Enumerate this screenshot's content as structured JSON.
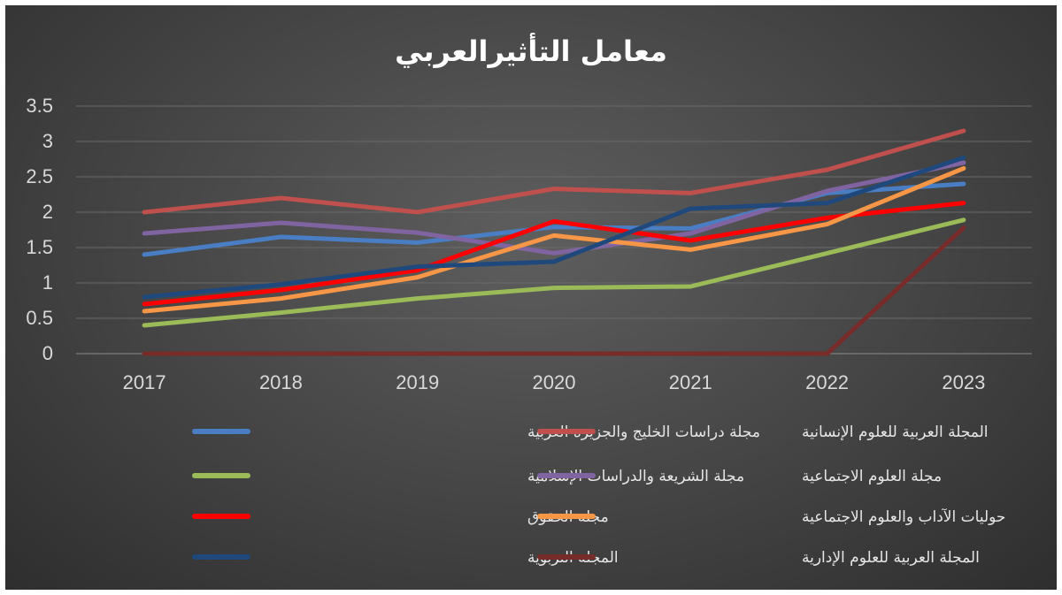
{
  "chart_data": {
    "type": "line",
    "title": "معامل التأثيرالعربي",
    "xlabel": "",
    "ylabel": "",
    "x": [
      "2017",
      "2018",
      "2019",
      "2020",
      "2021",
      "2022",
      "2023"
    ],
    "ylim": [
      0,
      3.5
    ],
    "yticks": [
      "0",
      "0.5",
      "1",
      "1.5",
      "2",
      "2.5",
      "3",
      "3.5"
    ],
    "ytick_values": [
      0,
      0.5,
      1,
      1.5,
      2,
      2.5,
      3,
      3.5
    ],
    "grid": true,
    "legend_position": "bottom",
    "series": [
      {
        "name": "مجلة دراسات الخليج والجزيرة العربية",
        "color": "#4a7ec4",
        "values": [
          1.4,
          1.65,
          1.57,
          1.79,
          1.77,
          2.27,
          2.4
        ]
      },
      {
        "name": "المجلة العربية للعلوم الإنسانية",
        "color": "#c0504d",
        "values": [
          2.0,
          2.2,
          2.0,
          2.33,
          2.27,
          2.6,
          3.15
        ]
      },
      {
        "name": "مجلة الشريعة والدراسات الإسلامية",
        "color": "#9bbb59",
        "values": [
          0.4,
          0.58,
          0.78,
          0.93,
          0.95,
          1.42,
          1.89
        ]
      },
      {
        "name": "مجلة العلوم الاجتماعية",
        "color": "#8064a2",
        "values": [
          1.7,
          1.85,
          1.71,
          1.42,
          1.7,
          2.3,
          2.7
        ]
      },
      {
        "name": "مجلة الحقوق",
        "color": "#ff0000",
        "values": [
          0.7,
          0.9,
          1.18,
          1.87,
          1.6,
          1.92,
          2.13
        ]
      },
      {
        "name": "حوليات الآداب والعلوم الاجتماعية",
        "color": "#f79646",
        "values": [
          0.6,
          0.78,
          1.08,
          1.67,
          1.47,
          1.83,
          2.62
        ]
      },
      {
        "name": "المجلة التربوية",
        "color": "#1f497d",
        "values": [
          0.8,
          0.98,
          1.23,
          1.3,
          2.05,
          2.13,
          2.77
        ]
      },
      {
        "name": "المجلة العربية للعلوم الإدارية",
        "color": "#772c2a",
        "values": [
          0,
          0,
          0,
          0,
          0,
          0,
          1.78
        ]
      }
    ]
  }
}
